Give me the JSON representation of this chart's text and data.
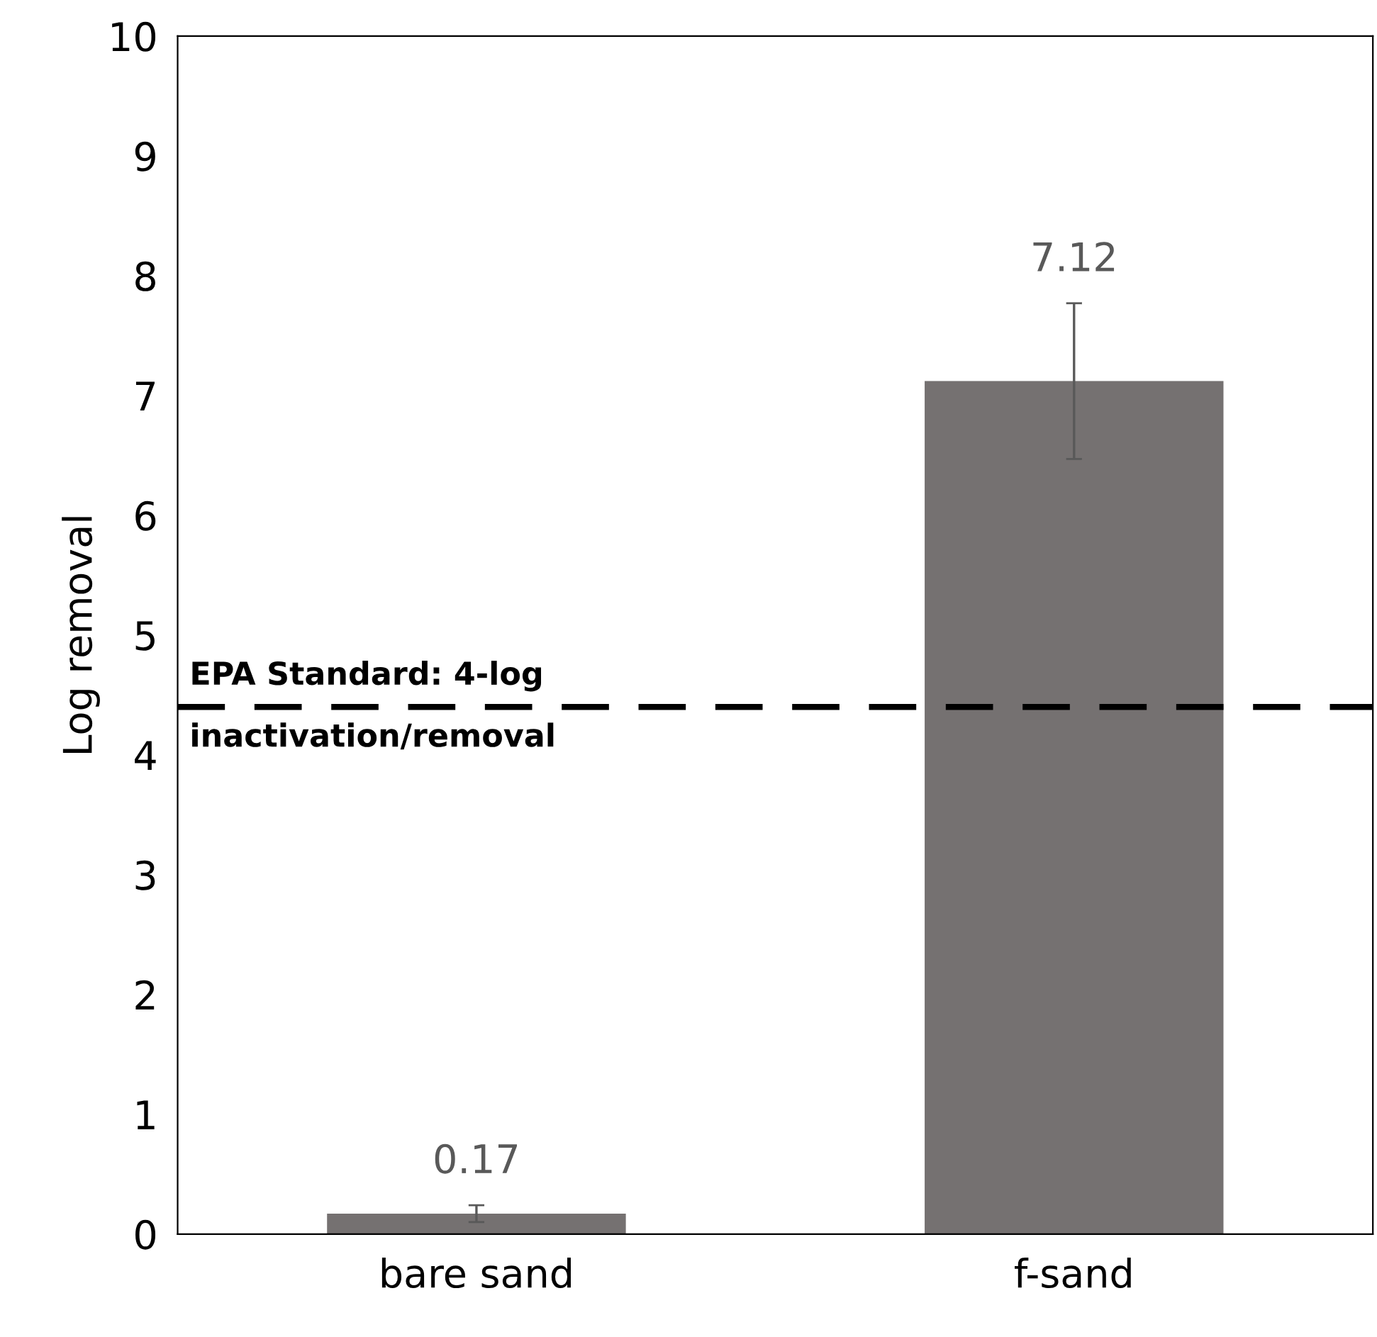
{
  "chart_data": {
    "type": "bar",
    "ylabel": "Log removal",
    "categories": [
      "bare sand",
      "f-sand"
    ],
    "values": [
      0.17,
      7.12
    ],
    "color": "#757171",
    "errors": [
      0.07,
      0.65
    ],
    "data_labels": true,
    "ylim": [
      0,
      10
    ],
    "yticks": [
      0,
      1,
      2,
      3,
      4,
      5,
      6,
      7,
      8,
      9,
      10
    ],
    "grid": false,
    "legend": false,
    "ref_lines": [
      {
        "axis": "y",
        "value": 4.4,
        "label": "EPA Standard: 4-log\ninactivation/removal",
        "color": "#000000",
        "line_style": "dashed"
      }
    ]
  }
}
